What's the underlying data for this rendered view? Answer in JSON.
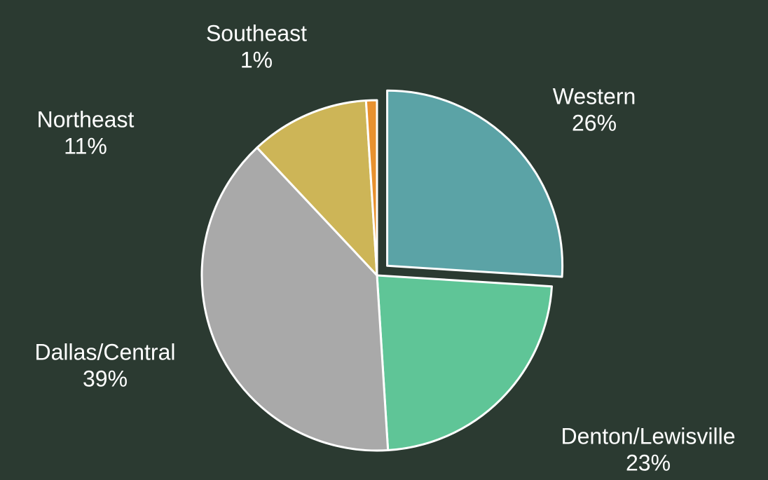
{
  "chart_data": {
    "type": "pie",
    "categories": [
      "Western",
      "Denton/Lewisville",
      "Dallas/Central",
      "Northeast",
      "Southeast"
    ],
    "values": [
      26,
      23,
      39,
      11,
      1
    ],
    "value_labels": [
      "26%",
      "23%",
      "39%",
      "11%",
      "1%"
    ],
    "colors": [
      "#5ba3a6",
      "#5fc597",
      "#a9a9a9",
      "#cdb557",
      "#e8912f"
    ],
    "exploded": [
      "Western"
    ]
  }
}
